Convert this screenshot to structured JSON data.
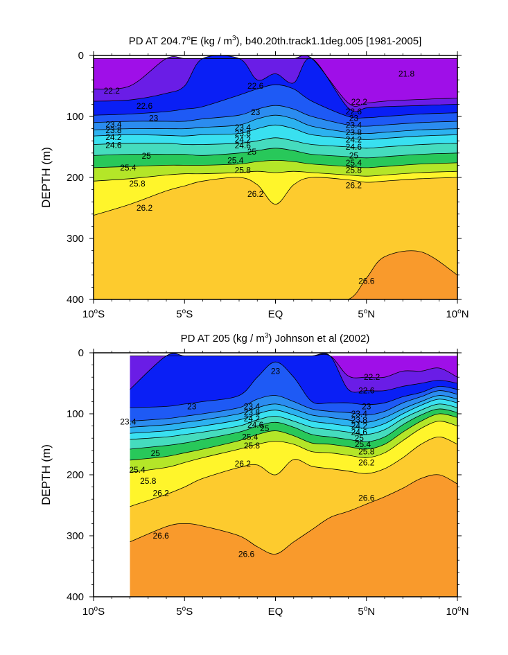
{
  "chart_data": [
    {
      "type": "contour",
      "title": "PD AT 204.7°E (kg / m³), b40.20th.track1.1deg.005 [1981-2005]",
      "title_parts": {
        "pre": "PD AT 204.7",
        "deg": "o",
        "mid": "E (kg / m",
        "sup": "3",
        "post": "), b40.20th.track1.1deg.005 [1981-2005]"
      },
      "xlabel": "",
      "ylabel": "DEPTH (m)",
      "x_range_deg": [
        -10,
        10
      ],
      "y_range_m": [
        0,
        400
      ],
      "y_inverted": true,
      "x_ticks": [
        {
          "value": -10,
          "label": "10",
          "deg": "o",
          "hem": "S"
        },
        {
          "value": -5,
          "label": "5",
          "deg": "o",
          "hem": "S"
        },
        {
          "value": 0,
          "label": "EQ",
          "deg": "",
          "hem": ""
        },
        {
          "value": 5,
          "label": "5",
          "deg": "o",
          "hem": "N"
        },
        {
          "value": 10,
          "label": "10",
          "deg": "o",
          "hem": "N"
        }
      ],
      "y_ticks": [
        0,
        100,
        200,
        300,
        400
      ],
      "data_x_range": [
        -10,
        10
      ],
      "data_top_m": 5,
      "isopycnals_depth_m": {
        "x": [
          -10,
          -8,
          -6,
          -5,
          -4,
          -2,
          -1,
          0,
          1,
          2,
          4,
          5,
          6,
          8,
          10
        ],
        "levels": [
          {
            "sigma": 21.8,
            "depth": [
              null,
              null,
              null,
              null,
              null,
              null,
              null,
              null,
              null,
              null,
              5,
              5,
              5,
              5,
              5
            ]
          },
          {
            "sigma": 22.2,
            "depth": [
              55,
              50,
              5,
              5,
              5,
              5,
              5,
              5,
              5,
              5,
              78,
              78,
              75,
              72,
              70
            ]
          },
          {
            "sigma": 22.6,
            "depth": [
              75,
              73,
              62,
              50,
              5,
              5,
              40,
              30,
              45,
              5,
              86,
              86,
              84,
              82,
              80
            ]
          },
          {
            "sigma": 23.0,
            "depth": [
              98,
              96,
              92,
              88,
              84,
              65,
              55,
              48,
              55,
              75,
              100,
              102,
              100,
              96,
              94
            ]
          },
          {
            "sigma": 23.4,
            "depth": [
              110,
              108,
              108,
              108,
              104,
              98,
              88,
              82,
              88,
              100,
              114,
              116,
              114,
              110,
              108
            ]
          },
          {
            "sigma": 23.8,
            "depth": [
              122,
              120,
              120,
              120,
              118,
              114,
              104,
              98,
              104,
              116,
              126,
              128,
              126,
              122,
              120
            ]
          },
          {
            "sigma": 24.2,
            "depth": [
              132,
              130,
              131,
              132,
              130,
              128,
              120,
              114,
              120,
              130,
              136,
              138,
              136,
              132,
              130
            ]
          },
          {
            "sigma": 24.6,
            "depth": [
              146,
              144,
              144,
              146,
              146,
              144,
              140,
              135,
              140,
              146,
              150,
              152,
              150,
              146,
              144
            ]
          },
          {
            "sigma": 25.0,
            "depth": [
              164,
              162,
              162,
              162,
              164,
              160,
              156,
              152,
              156,
              162,
              166,
              168,
              166,
              162,
              160
            ]
          },
          {
            "sigma": 25.4,
            "depth": [
              184,
              182,
              180,
              180,
              180,
              178,
              174,
              172,
              174,
              178,
              182,
              184,
              182,
              178,
              176
            ]
          },
          {
            "sigma": 25.8,
            "depth": [
              206,
              202,
              196,
              194,
              194,
              192,
              190,
              192,
              190,
              192,
              196,
              198,
              196,
              192,
              190
            ]
          },
          {
            "sigma": 26.2,
            "depth": [
              262,
              244,
              222,
              214,
              206,
              200,
              212,
              244,
              212,
              200,
              204,
              208,
              206,
              202,
              200
            ]
          },
          {
            "sigma": 26.6,
            "depth": [
              400,
              400,
              400,
              400,
              400,
              400,
              400,
              400,
              400,
              400,
              400,
              365,
              330,
              322,
              360
            ]
          }
        ]
      },
      "contour_labels": [
        {
          "text": "21.8",
          "x": 7.2,
          "depth": 30
        },
        {
          "text": "22.2",
          "x": -9.0,
          "depth": 58
        },
        {
          "text": "22.6",
          "x": -7.2,
          "depth": 83
        },
        {
          "text": "22.6",
          "x": -1.1,
          "depth": 50
        },
        {
          "text": "23",
          "x": -6.7,
          "depth": 103
        },
        {
          "text": "23",
          "x": -1.1,
          "depth": 93
        },
        {
          "text": "23.4",
          "x": -8.9,
          "depth": 113
        },
        {
          "text": "23.8",
          "x": -8.9,
          "depth": 123
        },
        {
          "text": "24.2",
          "x": -8.9,
          "depth": 134
        },
        {
          "text": "24.6",
          "x": -8.9,
          "depth": 147
        },
        {
          "text": "25",
          "x": -7.1,
          "depth": 165
        },
        {
          "text": "25.4",
          "x": -8.1,
          "depth": 184
        },
        {
          "text": "25.8",
          "x": -7.6,
          "depth": 210
        },
        {
          "text": "26.2",
          "x": -7.2,
          "depth": 250
        },
        {
          "text": "23.4",
          "x": -1.8,
          "depth": 118
        },
        {
          "text": "23.8",
          "x": -1.8,
          "depth": 128
        },
        {
          "text": "24.2",
          "x": -1.8,
          "depth": 138
        },
        {
          "text": "24.6",
          "x": -1.8,
          "depth": 148
        },
        {
          "text": "25",
          "x": -1.3,
          "depth": 158
        },
        {
          "text": "25.4",
          "x": -2.2,
          "depth": 172
        },
        {
          "text": "25.8",
          "x": -1.8,
          "depth": 188
        },
        {
          "text": "26.2",
          "x": -1.1,
          "depth": 227
        },
        {
          "text": "22.2",
          "x": 4.6,
          "depth": 76
        },
        {
          "text": "22.6",
          "x": 4.3,
          "depth": 92
        },
        {
          "text": "23",
          "x": 4.3,
          "depth": 103
        },
        {
          "text": "23.4",
          "x": 4.3,
          "depth": 114
        },
        {
          "text": "23.8",
          "x": 4.3,
          "depth": 126
        },
        {
          "text": "24.2",
          "x": 4.3,
          "depth": 138
        },
        {
          "text": "24.6",
          "x": 4.3,
          "depth": 150
        },
        {
          "text": "25",
          "x": 4.3,
          "depth": 164
        },
        {
          "text": "25.4",
          "x": 4.3,
          "depth": 176
        },
        {
          "text": "25.8",
          "x": 4.3,
          "depth": 188
        },
        {
          "text": "26.2",
          "x": 4.3,
          "depth": 213
        },
        {
          "text": "26.6",
          "x": 5.0,
          "depth": 370
        }
      ]
    },
    {
      "type": "contour",
      "title": "PD AT 205 (kg / m³) Johnson et al (2002)",
      "title_parts": {
        "pre": "PD AT 205 (kg / m",
        "deg": "",
        "mid": "",
        "sup": "3",
        "post": ") Johnson et al (2002)"
      },
      "xlabel": "",
      "ylabel": "DEPTH (m)",
      "x_range_deg": [
        -10,
        10
      ],
      "y_range_m": [
        0,
        400
      ],
      "y_inverted": true,
      "x_ticks": [
        {
          "value": -10,
          "label": "10",
          "deg": "o",
          "hem": "S"
        },
        {
          "value": -5,
          "label": "5",
          "deg": "o",
          "hem": "S"
        },
        {
          "value": 0,
          "label": "EQ",
          "deg": "",
          "hem": ""
        },
        {
          "value": 5,
          "label": "5",
          "deg": "o",
          "hem": "N"
        },
        {
          "value": 10,
          "label": "10",
          "deg": "o",
          "hem": "N"
        }
      ],
      "y_ticks": [
        0,
        100,
        200,
        300,
        400
      ],
      "data_x_range": [
        -8,
        10
      ],
      "data_top_m": 5,
      "isopycnals_depth_m": {
        "x": [
          -8,
          -6,
          -5,
          -4,
          -2,
          -1,
          0,
          1,
          2,
          3,
          4,
          5,
          6,
          7,
          8,
          9,
          10
        ],
        "levels": [
          {
            "sigma": 22.2,
            "depth": [
              null,
              null,
              null,
              null,
              null,
              null,
              null,
              null,
              null,
              5,
              38,
              40,
              40,
              30,
              30,
              25,
              40
            ]
          },
          {
            "sigma": 22.6,
            "depth": [
              60,
              5,
              5,
              5,
              5,
              5,
              5,
              5,
              5,
              5,
              60,
              62,
              62,
              55,
              50,
              45,
              50
            ]
          },
          {
            "sigma": 23.0,
            "depth": [
              90,
              88,
              84,
              80,
              70,
              40,
              15,
              40,
              80,
              82,
              82,
              85,
              82,
              72,
              65,
              55,
              60
            ]
          },
          {
            "sigma": 23.4,
            "depth": [
              112,
              108,
              104,
              100,
              90,
              76,
              70,
              80,
              92,
              96,
              98,
              102,
              96,
              82,
              72,
              62,
              68
            ]
          },
          {
            "sigma": 23.8,
            "depth": [
              122,
              118,
              114,
              110,
              100,
              90,
              84,
              92,
              102,
              106,
              110,
              114,
              106,
              92,
              80,
              70,
              76
            ]
          },
          {
            "sigma": 24.2,
            "depth": [
              132,
              128,
              124,
              120,
              110,
              100,
              94,
              102,
              112,
              116,
              120,
              124,
              116,
              100,
              86,
              76,
              82
            ]
          },
          {
            "sigma": 24.6,
            "depth": [
              142,
              138,
              134,
              130,
              120,
              110,
              104,
              112,
              122,
              126,
              130,
              134,
              126,
              108,
              94,
              84,
              90
            ]
          },
          {
            "sigma": 25.0,
            "depth": [
              158,
              152,
              148,
              142,
              130,
              120,
              114,
              122,
              134,
              138,
              142,
              146,
              138,
              118,
              102,
              92,
              98
            ]
          },
          {
            "sigma": 25.4,
            "depth": [
              176,
              170,
              164,
              158,
              144,
              134,
              128,
              136,
              148,
              150,
              154,
              158,
              150,
              130,
              112,
              100,
              106
            ]
          },
          {
            "sigma": 25.8,
            "depth": [
              196,
              188,
              180,
              172,
              158,
              150,
              145,
              150,
              162,
              164,
              168,
              172,
              164,
              144,
              124,
              112,
              120
            ]
          },
          {
            "sigma": 26.2,
            "depth": [
              252,
              232,
              220,
              206,
              188,
              184,
              200,
              175,
              186,
              190,
              194,
              198,
              190,
              172,
              150,
              138,
              150
            ]
          },
          {
            "sigma": 26.6,
            "depth": [
              310,
              285,
              280,
              284,
              300,
              318,
              330,
              310,
              290,
              270,
              260,
              248,
              236,
              222,
              206,
              200,
              215
            ]
          }
        ]
      },
      "contour_labels": [
        {
          "text": "23",
          "x": -4.6,
          "depth": 88
        },
        {
          "text": "23.4",
          "x": -8.1,
          "depth": 113
        },
        {
          "text": "25",
          "x": -6.6,
          "depth": 165
        },
        {
          "text": "25.4",
          "x": -7.6,
          "depth": 192
        },
        {
          "text": "25.8",
          "x": -7.0,
          "depth": 210
        },
        {
          "text": "26.2",
          "x": -6.3,
          "depth": 230
        },
        {
          "text": "26.6",
          "x": -6.3,
          "depth": 300
        },
        {
          "text": "23",
          "x": 0.0,
          "depth": 30
        },
        {
          "text": "23.4",
          "x": -1.3,
          "depth": 88
        },
        {
          "text": "23.8",
          "x": -1.3,
          "depth": 98
        },
        {
          "text": "24.2",
          "x": -1.3,
          "depth": 108
        },
        {
          "text": "24.6",
          "x": -1.1,
          "depth": 118
        },
        {
          "text": "25",
          "x": -0.6,
          "depth": 124
        },
        {
          "text": "25.4",
          "x": -1.4,
          "depth": 138
        },
        {
          "text": "25.8",
          "x": -1.3,
          "depth": 152
        },
        {
          "text": "26.2",
          "x": -1.8,
          "depth": 182
        },
        {
          "text": "26.6",
          "x": -1.6,
          "depth": 330
        },
        {
          "text": "22.2",
          "x": 5.3,
          "depth": 40
        },
        {
          "text": "22.6",
          "x": 5.0,
          "depth": 62
        },
        {
          "text": "23",
          "x": 5.0,
          "depth": 88
        },
        {
          "text": "23.4",
          "x": 4.6,
          "depth": 100
        },
        {
          "text": "23.8",
          "x": 4.6,
          "depth": 110
        },
        {
          "text": "24.2",
          "x": 4.6,
          "depth": 120
        },
        {
          "text": "24.6",
          "x": 4.6,
          "depth": 130
        },
        {
          "text": "25",
          "x": 4.6,
          "depth": 140
        },
        {
          "text": "25.4",
          "x": 4.8,
          "depth": 150
        },
        {
          "text": "25.8",
          "x": 5.0,
          "depth": 162
        },
        {
          "text": "26.2",
          "x": 5.0,
          "depth": 180
        },
        {
          "text": "26.6",
          "x": 5.0,
          "depth": 238
        }
      ]
    }
  ],
  "colormap": {
    "levels": [
      21.8,
      22.2,
      22.6,
      23.0,
      23.4,
      23.8,
      24.2,
      24.6,
      25.0,
      25.4,
      25.8,
      26.2,
      26.6
    ],
    "colors": [
      "#ff00ff",
      "#9f0fe8",
      "#6a1de6",
      "#0a1ff5",
      "#1e5af5",
      "#2b8cf0",
      "#2cb2f0",
      "#39e0f0",
      "#45dcbe",
      "#28c85a",
      "#b4e628",
      "#fff52b",
      "#fdcb2e",
      "#f99a2c",
      "#f66d28",
      "#f33e1c",
      "#e7100f",
      "#c40808"
    ]
  }
}
